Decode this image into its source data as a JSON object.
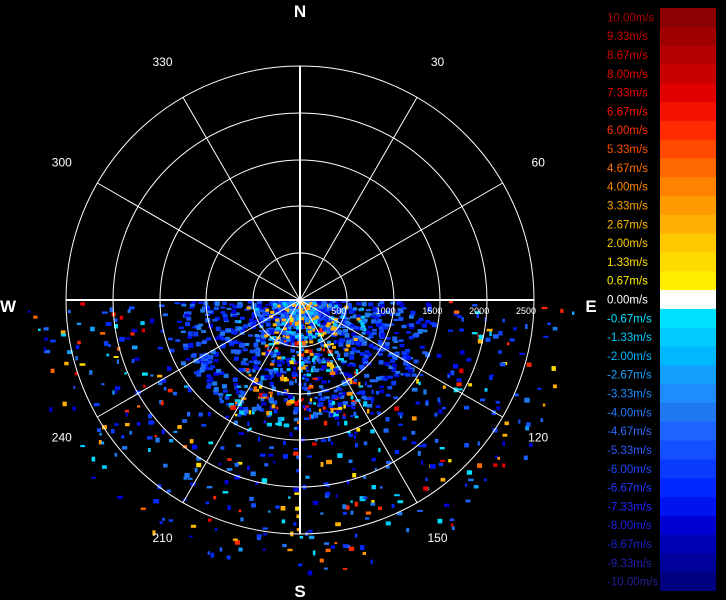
{
  "chart_data": {
    "type": "polar-heatmap",
    "title": "",
    "compass_labels": {
      "north": "N",
      "east": "E",
      "south": "S",
      "west": "W"
    },
    "azimuth_tick_labels": [
      "30",
      "60",
      "120",
      "150",
      "210",
      "240",
      "300",
      "330"
    ],
    "range_tick_labels": [
      "500",
      "1000",
      "1500",
      "2000",
      "2500"
    ],
    "range_max": 2500,
    "scan_sector_deg": [
      90,
      270
    ],
    "colorbar": {
      "unit": "m/s",
      "labels": [
        "10.00m/s",
        "9.33m/s",
        "8.67m/s",
        "8.00m/s",
        "7.33m/s",
        "6.67m/s",
        "6.00m/s",
        "5.33m/s",
        "4.67m/s",
        "4.00m/s",
        "3.33m/s",
        "2.67m/s",
        "2.00m/s",
        "1.33m/s",
        "0.67m/s",
        "0.00m/s",
        "-0.67m/s",
        "-1.33m/s",
        "-2.00m/s",
        "-2.67m/s",
        "-3.33m/s",
        "-4.00m/s",
        "-4.67m/s",
        "-5.33m/s",
        "-6.00m/s",
        "-6.67m/s",
        "-7.33m/s",
        "-8.00m/s",
        "-8.67m/s",
        "-9.33m/s",
        "-10.00m/s"
      ],
      "colors": [
        "#8b0000",
        "#9e0000",
        "#b40000",
        "#c80000",
        "#e00000",
        "#f51000",
        "#ff2a00",
        "#ff4a00",
        "#ff6a00",
        "#ff8200",
        "#ff9a00",
        "#ffb000",
        "#ffc800",
        "#ffdc00",
        "#ffee00",
        "#ffffff",
        "#00e0ff",
        "#00ccff",
        "#00b8ff",
        "#14a0ff",
        "#1e8cff",
        "#1e78f0",
        "#1e64ff",
        "#1450ff",
        "#0a3cff",
        "#0028ff",
        "#0014f0",
        "#0000d2",
        "#0000b4",
        "#00009b",
        "#000080"
      ],
      "label_colors": [
        "#b00000",
        "#c80000",
        "#d80000",
        "#e60000",
        "#f00000",
        "#ff1500",
        "#ff3000",
        "#ff5000",
        "#ff7000",
        "#ff8800",
        "#ffa000",
        "#ffb800",
        "#ffd000",
        "#ffe000",
        "#ffee00",
        "#ffffff",
        "#00e0ff",
        "#00ccff",
        "#00b8ff",
        "#14a0ff",
        "#1e8cff",
        "#1e78f0",
        "#2a6cff",
        "#2a5aff",
        "#2048ff",
        "#2038ff",
        "#2028ff",
        "#2020e0",
        "#2020c8",
        "#2020b0",
        "#202098"
      ]
    }
  }
}
